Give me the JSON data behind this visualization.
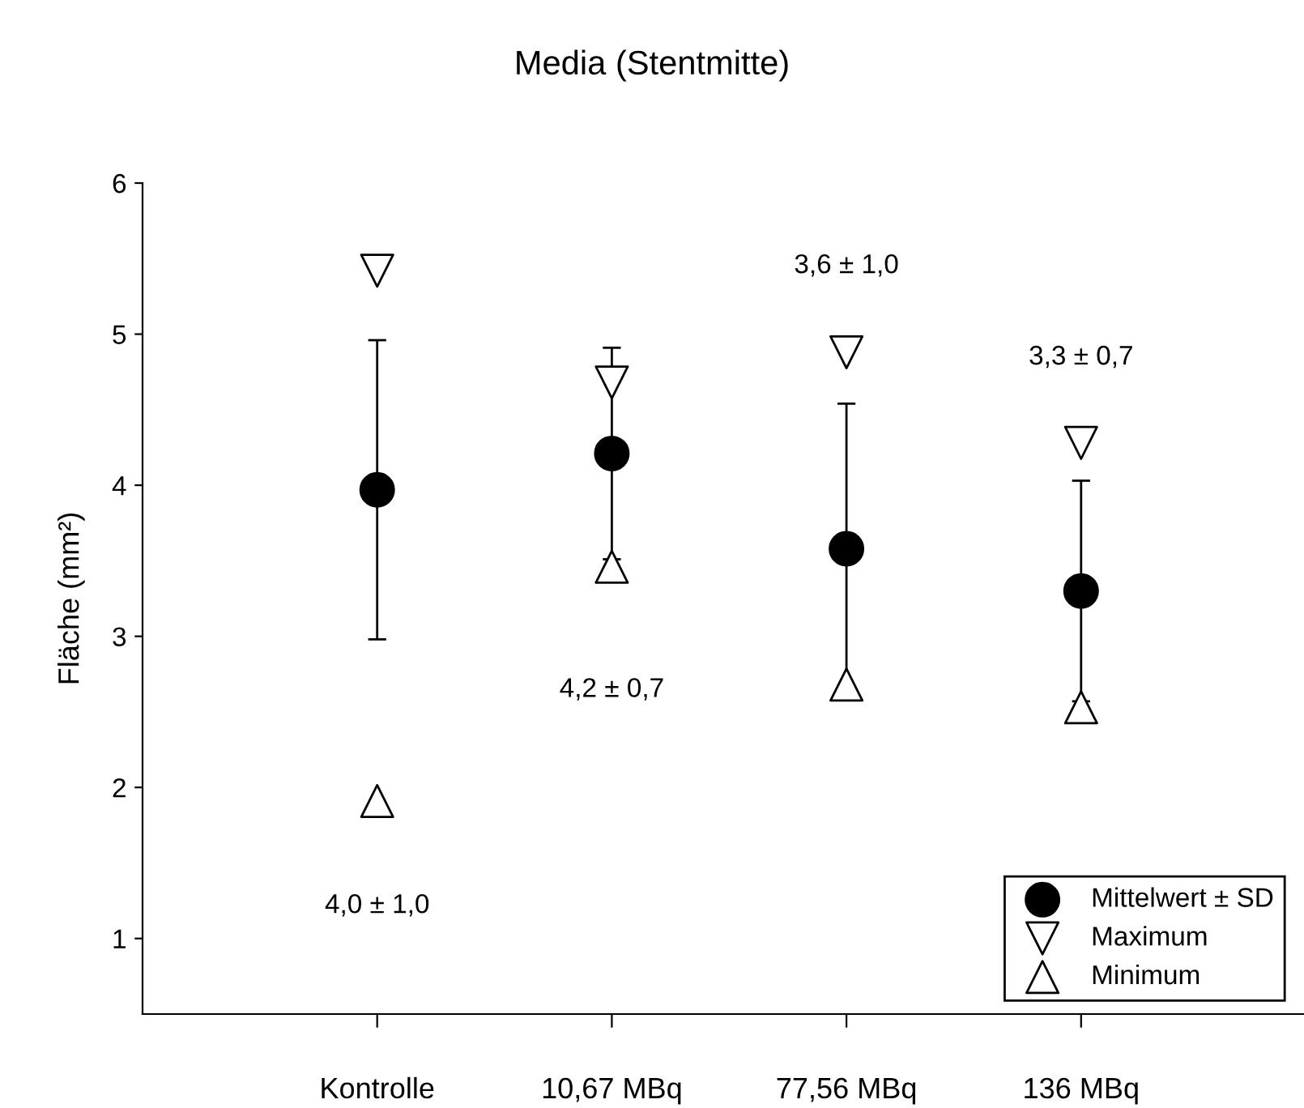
{
  "chart_data": {
    "type": "scatter",
    "title": "Media (Stentmitte)",
    "ylabel": "Fläche (mm²)",
    "categories": [
      "Kontrolle",
      "10,67 MBq",
      "77,56 MBq",
      "136 MBq"
    ],
    "series": [
      {
        "name": "Mittelwert ± SD",
        "color": "#000000",
        "marker": "circle",
        "values": [
          3.97,
          4.21,
          3.58,
          3.3
        ],
        "errors": [
          0.99,
          0.7,
          0.96,
          0.73
        ]
      },
      {
        "name": "Maximum",
        "color": "#000000",
        "marker": "triangle_down",
        "values": [
          5.42,
          4.68,
          4.88,
          4.28
        ]
      },
      {
        "name": "Minimum",
        "color": "#000000",
        "marker": "triangle",
        "values": [
          1.91,
          3.46,
          2.68,
          2.53
        ]
      }
    ],
    "annotations": [
      "4,0 ± 1,0",
      "4,2 ± 0,7",
      "3,6 ± 1,0",
      "3,3 ± 0,7"
    ],
    "ylim": [
      0.5,
      6
    ],
    "yticks": [
      1,
      2,
      3,
      4,
      5,
      6
    ],
    "grid": false,
    "legend": "bottom right"
  }
}
